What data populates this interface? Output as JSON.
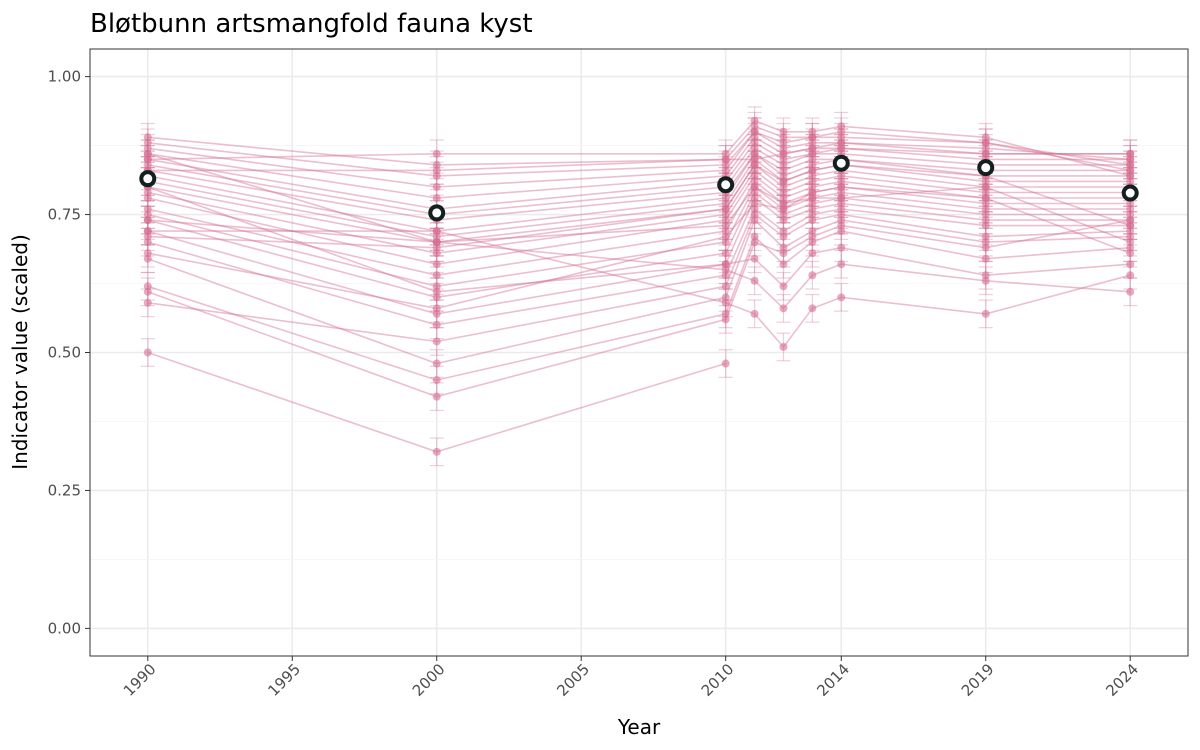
{
  "chart_data": {
    "type": "line",
    "title": "Bløtbunn artsmangfold fauna kyst",
    "xlabel": "Year",
    "ylabel": "Indicator value (scaled)",
    "xlim": [
      1988,
      2026
    ],
    "ylim": [
      -0.05,
      1.05
    ],
    "x_ticks": [
      1990,
      1995,
      2000,
      2005,
      2010,
      2014,
      2019,
      2024
    ],
    "x_tick_labels": [
      "1990",
      "1995",
      "2000",
      "2005",
      "2010",
      "2014",
      "2019",
      "2024"
    ],
    "y_ticks": [
      0.0,
      0.25,
      0.5,
      0.75,
      1.0
    ],
    "y_tick_labels": [
      "0.00",
      "0.25",
      "0.50",
      "0.75",
      "1.00"
    ],
    "grid": true,
    "colors": {
      "station": "#d56f93",
      "mean_fill": "#ffffff",
      "mean_stroke": "#12201f",
      "grid": "#ebebeb",
      "panel_border": "#333333"
    },
    "mean_series": {
      "x": [
        1990,
        2000,
        2010,
        2014,
        2019,
        2024
      ],
      "y": [
        0.815,
        0.753,
        0.804,
        0.843,
        0.835,
        0.789
      ]
    },
    "station_series": [
      {
        "x": [
          1990,
          2000,
          2010
        ],
        "y": [
          0.5,
          0.32,
          0.48
        ]
      },
      {
        "x": [
          1990,
          2000,
          2010,
          2011,
          2012,
          2013,
          2014,
          2019,
          2024
        ],
        "y": [
          0.72,
          0.72,
          0.59,
          0.57,
          0.51,
          0.58,
          0.6,
          0.57,
          0.64
        ]
      },
      {
        "x": [
          1990,
          2000,
          2010,
          2011,
          2012,
          2013,
          2014,
          2019,
          2024
        ],
        "y": [
          0.86,
          0.7,
          0.65,
          0.63,
          0.58,
          0.64,
          0.66,
          0.63,
          0.61
        ]
      },
      {
        "x": [
          1990,
          2000,
          2010,
          2011,
          2012,
          2013,
          2014,
          2019,
          2024
        ],
        "y": [
          0.8,
          0.61,
          0.66,
          0.67,
          0.62,
          0.68,
          0.69,
          0.64,
          0.66
        ]
      },
      {
        "x": [
          1990,
          2000,
          2010,
          2011,
          2012,
          2013,
          2014,
          2019,
          2024
        ],
        "y": [
          0.62,
          0.45,
          0.57,
          0.71,
          0.66,
          0.7,
          0.72,
          0.67,
          0.69
        ]
      },
      {
        "x": [
          1990,
          2000,
          2010,
          2011,
          2012,
          2013,
          2014,
          2019,
          2024
        ],
        "y": [
          0.67,
          0.48,
          0.6,
          0.74,
          0.69,
          0.72,
          0.74,
          0.7,
          0.71
        ]
      },
      {
        "x": [
          1990,
          2000,
          2010,
          2011,
          2012,
          2013,
          2014,
          2019,
          2024
        ],
        "y": [
          0.59,
          0.52,
          0.62,
          0.75,
          0.71,
          0.74,
          0.75,
          0.71,
          0.72
        ]
      },
      {
        "x": [
          1990,
          2000,
          2010,
          2011,
          2012,
          2013,
          2014,
          2019,
          2024
        ],
        "y": [
          0.7,
          0.55,
          0.64,
          0.76,
          0.72,
          0.75,
          0.76,
          0.73,
          0.73
        ]
      },
      {
        "x": [
          1990,
          2000,
          2010,
          2011,
          2012,
          2013,
          2014,
          2019,
          2024
        ],
        "y": [
          0.72,
          0.57,
          0.66,
          0.78,
          0.74,
          0.76,
          0.77,
          0.74,
          0.74
        ]
      },
      {
        "x": [
          1990,
          2000,
          2010,
          2011,
          2012,
          2013,
          2014,
          2019,
          2024
        ],
        "y": [
          0.74,
          0.6,
          0.68,
          0.79,
          0.75,
          0.77,
          0.78,
          0.75,
          0.75
        ]
      },
      {
        "x": [
          1990,
          2000,
          2010,
          2011,
          2012,
          2013,
          2014,
          2019,
          2024
        ],
        "y": [
          0.75,
          0.62,
          0.7,
          0.8,
          0.76,
          0.78,
          0.79,
          0.76,
          0.76
        ]
      },
      {
        "x": [
          1990,
          2000,
          2010,
          2011,
          2012,
          2013,
          2014,
          2019,
          2024
        ],
        "y": [
          0.76,
          0.64,
          0.72,
          0.81,
          0.77,
          0.79,
          0.8,
          0.77,
          0.77
        ]
      },
      {
        "x": [
          1990,
          2000,
          2010,
          2011,
          2012,
          2013,
          2014,
          2019,
          2024
        ],
        "y": [
          0.78,
          0.66,
          0.74,
          0.82,
          0.78,
          0.8,
          0.81,
          0.78,
          0.78
        ]
      },
      {
        "x": [
          1990,
          2000,
          2010,
          2011,
          2012,
          2013,
          2014,
          2019,
          2024
        ],
        "y": [
          0.79,
          0.68,
          0.75,
          0.83,
          0.79,
          0.81,
          0.82,
          0.79,
          0.79
        ]
      },
      {
        "x": [
          1990,
          2000,
          2010,
          2011,
          2012,
          2013,
          2014,
          2019,
          2024
        ],
        "y": [
          0.8,
          0.7,
          0.76,
          0.84,
          0.8,
          0.82,
          0.83,
          0.8,
          0.8
        ]
      },
      {
        "x": [
          1990,
          2000,
          2010,
          2011,
          2012,
          2013,
          2014,
          2019,
          2024
        ],
        "y": [
          0.81,
          0.71,
          0.77,
          0.85,
          0.81,
          0.83,
          0.84,
          0.81,
          0.81
        ]
      },
      {
        "x": [
          1990,
          2000,
          2010,
          2011,
          2012,
          2013,
          2014,
          2019,
          2024
        ],
        "y": [
          0.82,
          0.72,
          0.78,
          0.86,
          0.82,
          0.84,
          0.85,
          0.82,
          0.82
        ]
      },
      {
        "x": [
          1990,
          2000,
          2010,
          2011,
          2012,
          2013,
          2014,
          2019,
          2024
        ],
        "y": [
          0.83,
          0.74,
          0.79,
          0.86,
          0.83,
          0.85,
          0.85,
          0.83,
          0.83
        ]
      },
      {
        "x": [
          1990,
          2000,
          2010,
          2011,
          2012,
          2013,
          2014,
          2019,
          2024
        ],
        "y": [
          0.84,
          0.75,
          0.8,
          0.87,
          0.84,
          0.86,
          0.86,
          0.84,
          0.84
        ]
      },
      {
        "x": [
          1990,
          2000,
          2010,
          2011,
          2012,
          2013,
          2014,
          2019,
          2024
        ],
        "y": [
          0.85,
          0.76,
          0.81,
          0.88,
          0.85,
          0.86,
          0.87,
          0.85,
          0.85
        ]
      },
      {
        "x": [
          1990,
          2000,
          2010,
          2011,
          2012,
          2013,
          2014,
          2019,
          2024
        ],
        "y": [
          0.86,
          0.78,
          0.82,
          0.89,
          0.86,
          0.87,
          0.88,
          0.86,
          0.86
        ]
      },
      {
        "x": [
          1990,
          2000,
          2010,
          2011,
          2012,
          2013,
          2014,
          2019,
          2024
        ],
        "y": [
          0.87,
          0.8,
          0.83,
          0.9,
          0.87,
          0.88,
          0.88,
          0.87,
          0.85
        ]
      },
      {
        "x": [
          1990,
          2000,
          2010,
          2011,
          2012,
          2013,
          2014,
          2019,
          2024
        ],
        "y": [
          0.88,
          0.82,
          0.84,
          0.9,
          0.88,
          0.89,
          0.89,
          0.88,
          0.84
        ]
      },
      {
        "x": [
          1990,
          2000,
          2010,
          2011,
          2012,
          2013,
          2014,
          2019,
          2024
        ],
        "y": [
          0.89,
          0.84,
          0.85,
          0.91,
          0.89,
          0.89,
          0.9,
          0.88,
          0.83
        ]
      },
      {
        "x": [
          1990,
          2000,
          2010,
          2011,
          2012,
          2013,
          2014,
          2019,
          2024
        ],
        "y": [
          0.85,
          0.86,
          0.86,
          0.92,
          0.9,
          0.9,
          0.91,
          0.89,
          0.82
        ]
      },
      {
        "x": [
          1990,
          2000,
          2010,
          2011,
          2012,
          2013,
          2014,
          2019,
          2024
        ],
        "y": [
          0.71,
          0.69,
          0.76,
          0.84,
          0.81,
          0.83,
          0.84,
          0.82,
          0.73
        ]
      },
      {
        "x": [
          1990,
          2000,
          2010,
          2011,
          2012,
          2013,
          2014,
          2019,
          2024
        ],
        "y": [
          0.74,
          0.7,
          0.73,
          0.8,
          0.77,
          0.78,
          0.78,
          0.8,
          0.7
        ]
      },
      {
        "x": [
          1990,
          2000,
          2010,
          2011,
          2012,
          2013,
          2014,
          2019,
          2024
        ],
        "y": [
          0.68,
          0.58,
          0.71,
          0.77,
          0.76,
          0.79,
          0.8,
          0.78,
          0.68
        ]
      },
      {
        "x": [
          1990,
          2000,
          2010,
          2011,
          2012,
          2013,
          2014,
          2019,
          2024
        ],
        "y": [
          0.83,
          0.83,
          0.85,
          0.85,
          0.86,
          0.87,
          0.87,
          0.86,
          0.86
        ]
      },
      {
        "x": [
          1990,
          2000,
          2010,
          2011,
          2012,
          2013,
          2014,
          2019,
          2024
        ],
        "y": [
          0.61,
          0.42,
          0.56,
          0.7,
          0.68,
          0.71,
          0.73,
          0.69,
          0.74
        ]
      }
    ]
  }
}
